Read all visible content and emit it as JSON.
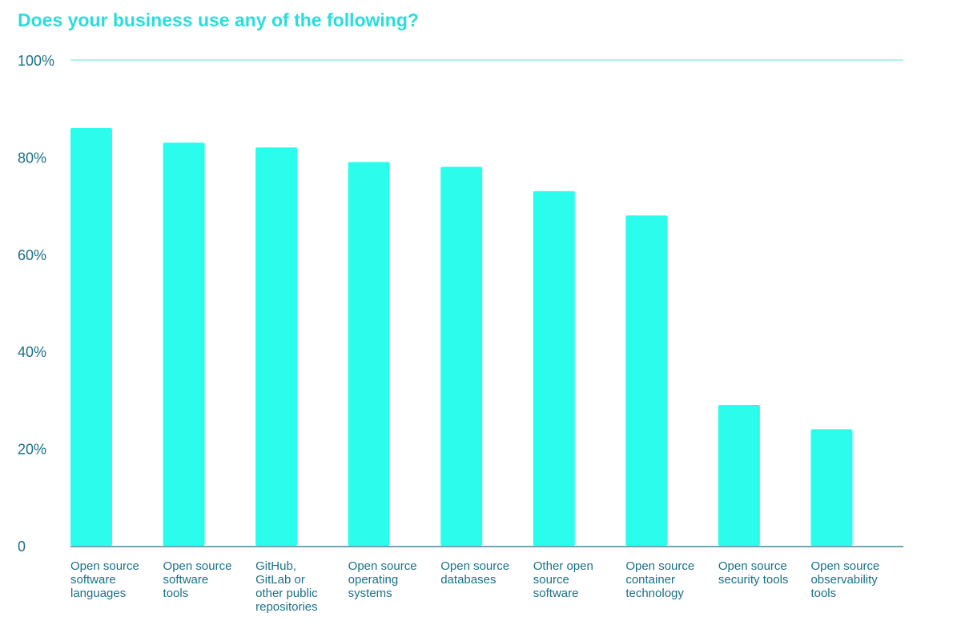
{
  "chart_data": {
    "type": "bar",
    "title": "Does your business use any of the following?",
    "categories": [
      [
        "Open source",
        "software",
        "languages"
      ],
      [
        "Open source",
        "software",
        "tools"
      ],
      [
        "GitHub,",
        "GitLab or",
        "other public",
        "repositories"
      ],
      [
        "Open source",
        "operating",
        "systems"
      ],
      [
        "Open source",
        "databases"
      ],
      [
        "Other open",
        "source",
        "software"
      ],
      [
        "Open source",
        "container",
        "technology"
      ],
      [
        "Open source",
        "security tools"
      ],
      [
        "Open source",
        "observability",
        "tools"
      ]
    ],
    "values": [
      86,
      83,
      82,
      79,
      78,
      73,
      68,
      29,
      24
    ],
    "ylim": [
      0,
      100
    ],
    "yticks": [
      0,
      20,
      40,
      60,
      80,
      100
    ],
    "ytick_labels": [
      "0",
      "20%",
      "40%",
      "60%",
      "80%",
      "100%"
    ],
    "xlabel": "",
    "ylabel": "",
    "grid": false,
    "colors": {
      "bar": "#2bfdec",
      "title": "#2bdcdc",
      "axis_text": "#1b6f87",
      "top_line": "#7ee8ea",
      "baseline": "#1b6f87"
    }
  }
}
